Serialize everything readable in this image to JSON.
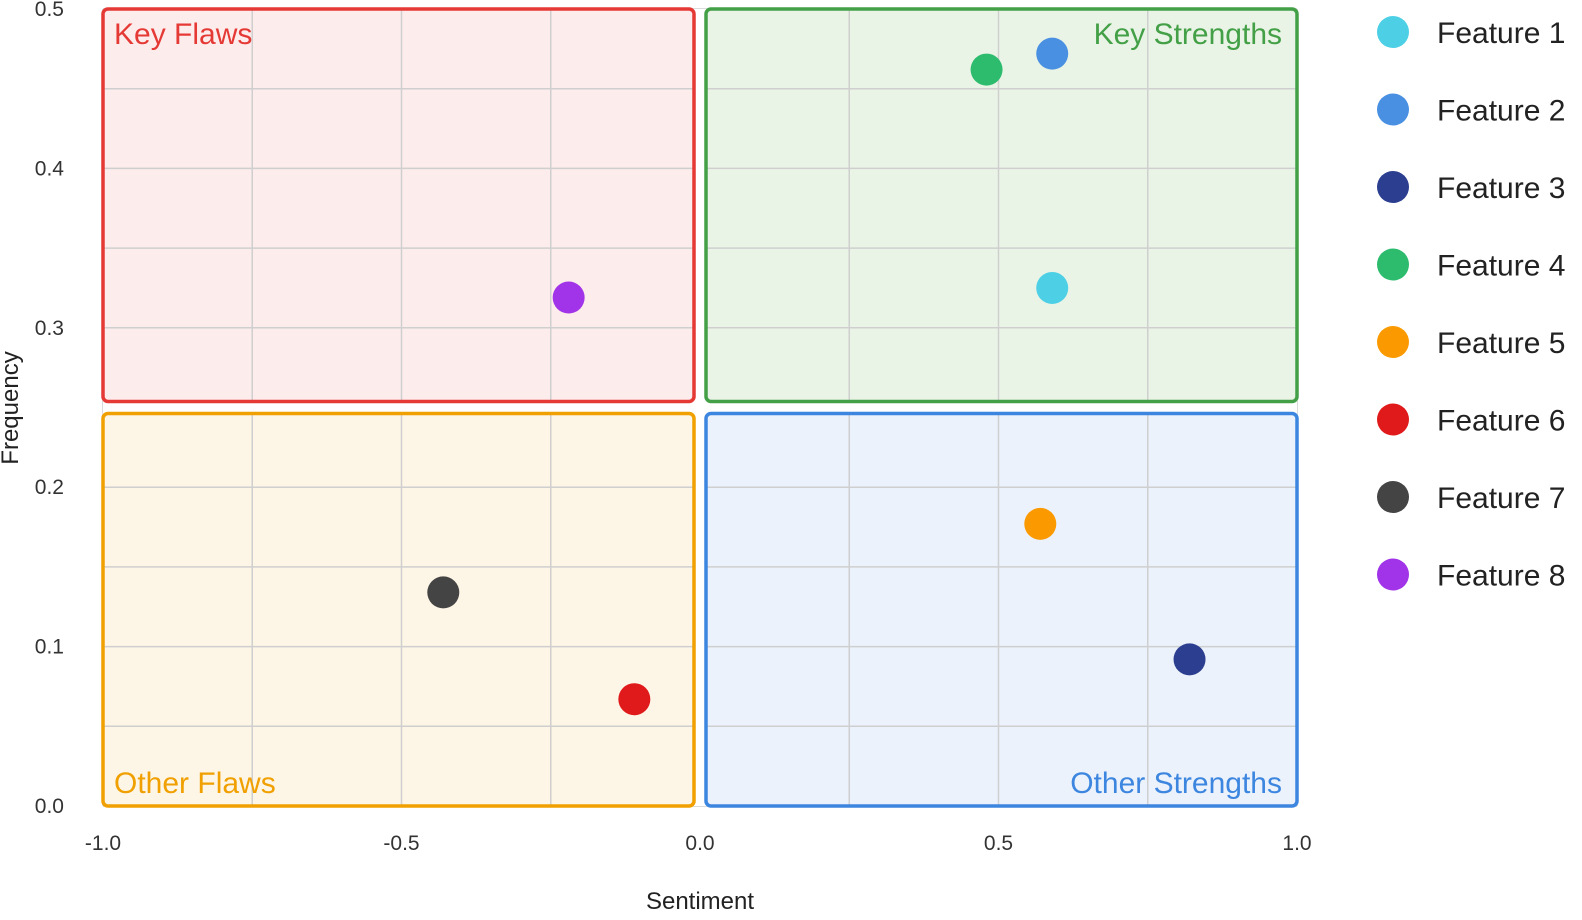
{
  "chart_data": {
    "type": "scatter",
    "xlabel": "Sentiment",
    "ylabel": "Frequency",
    "xlim": [
      -1.0,
      1.0
    ],
    "ylim": [
      0.0,
      0.5
    ],
    "x_ticks": [
      "-1.0",
      "-0.5",
      "0.0",
      "0.5",
      "1.0"
    ],
    "y_ticks": [
      "0.0",
      "0.1",
      "0.2",
      "0.3",
      "0.4",
      "0.5"
    ],
    "grid": true,
    "legend_position": "right",
    "quadrants": [
      {
        "label": "Key Flaws",
        "x_range": [
          -1.0,
          0.0
        ],
        "y_range": [
          0.25,
          0.5
        ],
        "color": "#e53935",
        "fill": "#fdecec",
        "label_position": "top-left"
      },
      {
        "label": "Key Strengths",
        "x_range": [
          0.0,
          1.0
        ],
        "y_range": [
          0.25,
          0.5
        ],
        "color": "#43a047",
        "fill": "#eaf4e6",
        "label_position": "top-right"
      },
      {
        "label": "Other Flaws",
        "x_range": [
          -1.0,
          0.0
        ],
        "y_range": [
          0.0,
          0.25
        ],
        "color": "#f0a000",
        "fill": "#fdf5e6",
        "label_position": "bottom-left"
      },
      {
        "label": "Other Strengths",
        "x_range": [
          0.0,
          1.0
        ],
        "y_range": [
          0.0,
          0.25
        ],
        "color": "#3d86e0",
        "fill": "#ebf2fc",
        "label_position": "bottom-right"
      }
    ],
    "series": [
      {
        "name": "Feature 1",
        "color": "#4dd0e6",
        "x": 0.59,
        "y": 0.325
      },
      {
        "name": "Feature 2",
        "color": "#4a90e2",
        "x": 0.59,
        "y": 0.472
      },
      {
        "name": "Feature 3",
        "color": "#2c3e8f",
        "x": 0.82,
        "y": 0.092
      },
      {
        "name": "Feature 4",
        "color": "#2dbb6e",
        "x": 0.48,
        "y": 0.462
      },
      {
        "name": "Feature 5",
        "color": "#fb9a00",
        "x": 0.57,
        "y": 0.177
      },
      {
        "name": "Feature 6",
        "color": "#e01a1a",
        "x": -0.11,
        "y": 0.067
      },
      {
        "name": "Feature 7",
        "color": "#444444",
        "x": -0.43,
        "y": 0.134
      },
      {
        "name": "Feature 8",
        "color": "#a133e8",
        "x": -0.22,
        "y": 0.319
      }
    ]
  }
}
